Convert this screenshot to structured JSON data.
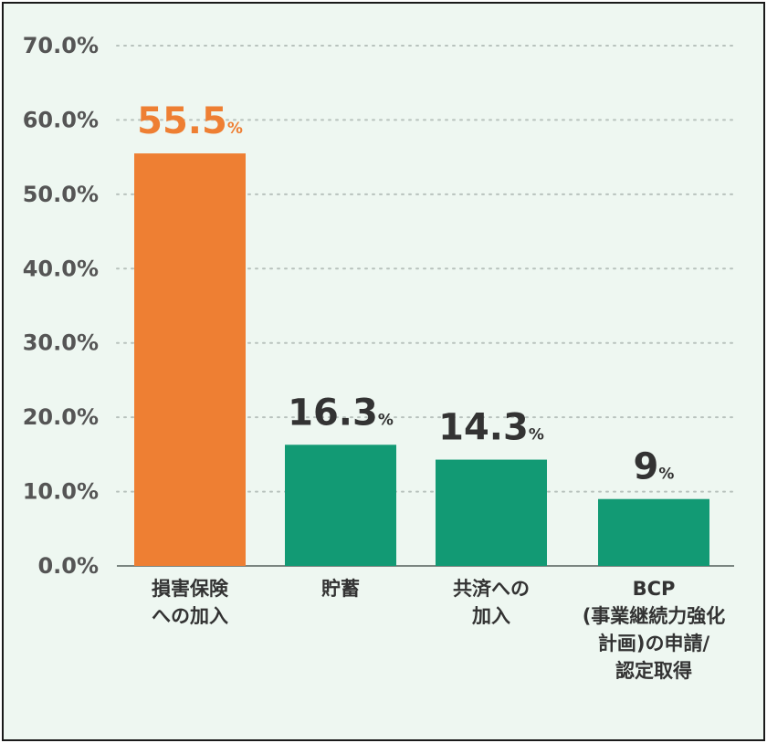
{
  "chart_data": {
    "type": "bar",
    "categories": [
      [
        "損害保険",
        "への加入"
      ],
      [
        "貯蓄"
      ],
      [
        "共済への",
        "加入"
      ],
      [
        "BCP",
        "(事業継続力強化",
        "計画)の申請/",
        "認定取得"
      ]
    ],
    "values": [
      55.5,
      16.3,
      14.3,
      9
    ],
    "value_labels": [
      "55.5",
      "16.3",
      "14.3",
      "9"
    ],
    "value_unit": "%",
    "y_ticks": [
      "0.0%",
      "10.0%",
      "20.0%",
      "30.0%",
      "40.0%",
      "50.0%",
      "60.0%",
      "70.0%"
    ],
    "ylim": [
      0,
      70
    ],
    "grid": "dotted horizontal",
    "bar_colors": [
      "#ee7f33",
      "#129a74",
      "#129a74",
      "#129a74"
    ],
    "label_colors": [
      "#ee7f33",
      "#333333",
      "#333333",
      "#333333"
    ],
    "title": "",
    "xlabel": "",
    "ylabel": ""
  }
}
